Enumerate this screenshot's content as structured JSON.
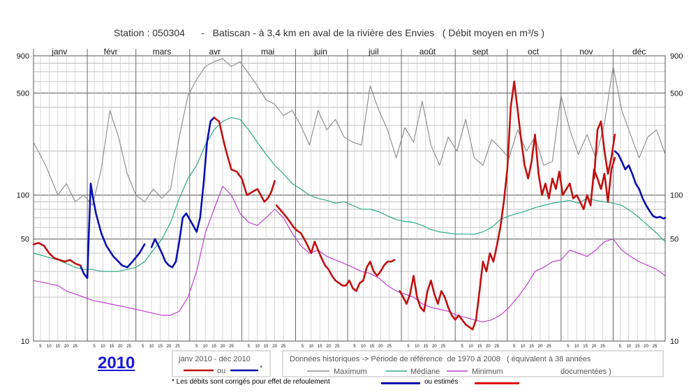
{
  "title": "Station : 050304      -   Batiscan - à 3,4 km en aval de la rivière des Envies   ( Débit moyen en m³/s )",
  "year_label": "2010",
  "footnote": {
    "text_a": "* Les débits sont corrigés pour effet de refoulement",
    "text_b": "ou estimés",
    "colors": {
      "corrected": "#0a10b0",
      "estimated": "#e01010"
    }
  },
  "legend": {
    "period_line": "janv 2010 - déc 2010",
    "ou": "ou",
    "star": "*",
    "historic_line1": "Données historiques -> Période de référence  de 1970 à 2008   ( équivalent à 38 années",
    "historic_line2": "documentées )",
    "maximum": "Maximum",
    "mediane": "Médiane",
    "minimum": "Minimum"
  },
  "chart_data": {
    "type": "line",
    "title": "Station : 050304 - Batiscan - à 3,4 km en aval de la rivière des Envies ( Débit moyen en m³/s )",
    "y_scale": "log",
    "ylim": [
      10,
      900
    ],
    "y_ticks": [
      10,
      50,
      100,
      500,
      900
    ],
    "months": [
      "janv",
      "févr",
      "mars",
      "avr",
      "mai",
      "juin",
      "juil",
      "août",
      "sept",
      "oct",
      "nov",
      "déc"
    ],
    "day_ticks": [
      "5",
      "10",
      "15",
      "20",
      "25"
    ],
    "x_unit": "day of year",
    "xlim": [
      1,
      365
    ],
    "grid": true,
    "colors": {
      "maximum": "#909090",
      "mediane": "#2ea888",
      "minimum": "#c040d0",
      "corrected": "#0a10b0",
      "estimated": "#c01010"
    },
    "series": [
      {
        "name": "Maximum",
        "color_key": "maximum",
        "x": [
          1,
          8,
          15,
          20,
          25,
          30,
          35,
          40,
          45,
          50,
          55,
          60,
          65,
          70,
          75,
          80,
          85,
          90,
          95,
          100,
          105,
          110,
          115,
          120,
          125,
          130,
          135,
          140,
          145,
          150,
          155,
          160,
          165,
          170,
          175,
          180,
          185,
          190,
          195,
          200,
          205,
          210,
          215,
          220,
          225,
          230,
          235,
          240,
          245,
          250,
          255,
          260,
          265,
          270,
          275,
          280,
          285,
          290,
          295,
          300,
          305,
          310,
          315,
          320,
          325,
          330,
          335,
          340,
          345,
          350,
          355,
          360,
          365
        ],
        "y": [
          230,
          160,
          100,
          120,
          90,
          100,
          85,
          150,
          380,
          250,
          140,
          100,
          90,
          110,
          95,
          110,
          250,
          480,
          620,
          760,
          820,
          860,
          760,
          820,
          680,
          560,
          450,
          420,
          350,
          380,
          300,
          220,
          380,
          280,
          330,
          250,
          230,
          220,
          560,
          380,
          280,
          180,
          290,
          230,
          440,
          220,
          160,
          250,
          200,
          330,
          180,
          160,
          240,
          210,
          180,
          280,
          200,
          250,
          160,
          170,
          480,
          280,
          190,
          260,
          180,
          310,
          760,
          380,
          260,
          180,
          250,
          280,
          190
        ]
      },
      {
        "name": "Médiane",
        "color_key": "mediane",
        "x": [
          1,
          8,
          15,
          20,
          25,
          30,
          35,
          40,
          45,
          50,
          55,
          60,
          65,
          70,
          75,
          80,
          85,
          90,
          95,
          100,
          105,
          110,
          115,
          120,
          125,
          130,
          135,
          140,
          145,
          150,
          155,
          160,
          165,
          170,
          175,
          180,
          185,
          190,
          195,
          200,
          205,
          210,
          215,
          220,
          225,
          230,
          235,
          240,
          245,
          250,
          255,
          260,
          265,
          270,
          275,
          280,
          285,
          290,
          295,
          300,
          305,
          310,
          315,
          320,
          325,
          330,
          335,
          340,
          345,
          350,
          355,
          360,
          365
        ],
        "y": [
          40,
          38,
          36,
          34,
          32,
          31,
          31,
          30,
          30,
          30,
          31,
          32,
          35,
          42,
          50,
          65,
          95,
          130,
          160,
          220,
          280,
          320,
          340,
          330,
          280,
          230,
          190,
          160,
          140,
          120,
          110,
          100,
          95,
          92,
          88,
          90,
          85,
          80,
          80,
          77,
          72,
          68,
          66,
          65,
          62,
          58,
          56,
          55,
          54,
          54,
          54,
          56,
          60,
          68,
          72,
          75,
          78,
          82,
          85,
          88,
          90,
          92,
          88,
          95,
          92,
          90,
          88,
          85,
          78,
          70,
          62,
          55,
          48
        ]
      },
      {
        "name": "Minimum",
        "color_key": "minimum",
        "x": [
          1,
          8,
          15,
          20,
          25,
          30,
          35,
          40,
          45,
          50,
          55,
          60,
          65,
          70,
          75,
          80,
          85,
          90,
          95,
          100,
          105,
          110,
          115,
          120,
          125,
          130,
          135,
          140,
          145,
          150,
          155,
          160,
          165,
          170,
          175,
          180,
          185,
          190,
          195,
          200,
          205,
          210,
          215,
          220,
          225,
          230,
          235,
          240,
          245,
          250,
          255,
          260,
          265,
          270,
          275,
          280,
          285,
          290,
          295,
          300,
          305,
          310,
          315,
          320,
          325,
          330,
          335,
          340,
          345,
          350,
          355,
          360,
          365
        ],
        "y": [
          26,
          25,
          24,
          22,
          21,
          20,
          19,
          18.5,
          18,
          17.5,
          17,
          16.5,
          16,
          15.5,
          15,
          15,
          16,
          20,
          30,
          55,
          80,
          115,
          100,
          75,
          65,
          62,
          70,
          80,
          70,
          55,
          45,
          40,
          42,
          38,
          36,
          34,
          32,
          30,
          29,
          27,
          24,
          22,
          21,
          20,
          18,
          17,
          16.5,
          16,
          15,
          14.5,
          14,
          13.5,
          14,
          15,
          17,
          20,
          24,
          30,
          32,
          35,
          36,
          42,
          40,
          38,
          42,
          48,
          50,
          42,
          38,
          35,
          33,
          31,
          28
        ]
      },
      {
        "name": "Corrigé",
        "color_key": "corrected",
        "segments": [
          {
            "x": [
              28,
              30,
              32,
              33,
              34,
              35,
              37,
              40,
              43,
              47,
              50,
              52,
              55,
              58,
              62,
              65
            ],
            "y": [
              33,
              29,
              27,
              60,
              120,
              100,
              75,
              55,
              45,
              38,
              35,
              33,
              32,
              35,
              40,
              46
            ]
          },
          {
            "x": [
              69,
              71,
              73,
              75,
              77,
              79,
              81,
              83,
              85,
              87,
              89,
              91,
              93,
              95,
              97,
              99,
              101,
              103,
              105
            ],
            "y": [
              44,
              50,
              45,
              40,
              35,
              33,
              32,
              35,
              48,
              70,
              75,
              68,
              62,
              56,
              70,
              120,
              230,
              320,
              340
            ]
          },
          {
            "x": [
              336,
              338,
              340,
              342,
              344,
              346,
              348,
              350,
              352,
              354,
              356,
              358,
              360,
              362,
              364,
              365
            ],
            "y": [
              200,
              190,
              170,
              150,
              160,
              140,
              120,
              110,
              95,
              85,
              78,
              72,
              70,
              71,
              69,
              70
            ]
          }
        ]
      },
      {
        "name": "Estimé",
        "color_key": "estimated",
        "segments": [
          {
            "x": [
              1,
              4,
              7,
              10,
              13,
              16,
              19,
              22,
              25,
              28
            ],
            "y": [
              46,
              47,
              45,
              40,
              37,
              36,
              35,
              36,
              34,
              33
            ]
          },
          {
            "x": [
              105,
              108,
              110,
              112,
              115,
              118,
              121,
              124,
              127,
              130,
              132,
              134,
              136,
              138,
              140
            ],
            "y": [
              340,
              320,
              250,
              200,
              150,
              145,
              130,
              100,
              105,
              110,
              100,
              90,
              95,
              105,
              125
            ]
          },
          {
            "x": [
              141,
              143,
              145,
              147,
              149,
              151,
              153,
              155,
              157,
              159,
              161,
              163,
              165,
              167,
              169,
              171,
              173,
              175,
              177,
              179,
              181,
              183,
              185,
              187,
              189,
              191
            ],
            "y": [
              85,
              80,
              75,
              70,
              65,
              60,
              57,
              55,
              50,
              45,
              40,
              48,
              42,
              37,
              33,
              31,
              28,
              26,
              25,
              24,
              24,
              26,
              23,
              22,
              25,
              26
            ]
          },
          {
            "x": [
              191,
              193,
              195,
              197,
              199,
              201,
              203,
              205,
              207,
              209
            ],
            "y": [
              26,
              32,
              35,
              30,
              28,
              30,
              33,
              35,
              35,
              36
            ]
          },
          {
            "x": [
              212,
              214,
              216,
              218,
              220,
              222,
              224,
              226,
              228,
              230,
              232,
              234,
              236,
              238,
              240,
              242,
              244,
              246,
              248,
              250,
              252,
              254,
              256,
              258,
              260,
              262,
              264,
              266,
              268,
              270,
              272,
              274,
              276,
              278,
              280,
              282,
              284,
              286,
              288,
              290,
              292,
              294,
              296,
              298,
              300,
              302,
              304,
              306,
              308,
              310,
              312,
              314,
              316,
              318,
              320,
              322,
              324,
              326,
              328,
              330,
              332,
              334,
              336
            ],
            "y": [
              22,
              20,
              18,
              21,
              28,
              20,
              17,
              16,
              22,
              26,
              21,
              18,
              22,
              20,
              17,
              15,
              14,
              15,
              14,
              13,
              12.5,
              12,
              14,
              22,
              35,
              30,
              40,
              35,
              45,
              60,
              90,
              150,
              400,
              600,
              380,
              240,
              160,
              130,
              170,
              260,
              140,
              100,
              120,
              95,
              130,
              110,
              145,
              100,
              110,
              120,
              95,
              100,
              90,
              80,
              100,
              85,
              150,
              130,
              110,
              140,
              90,
              150,
              180
            ]
          },
          {
            "x": [
              324,
              326,
              328,
              330,
              332,
              334,
              336
            ],
            "y": [
              130,
              280,
              320,
              200,
              140,
              180,
              260
            ]
          }
        ]
      }
    ]
  }
}
